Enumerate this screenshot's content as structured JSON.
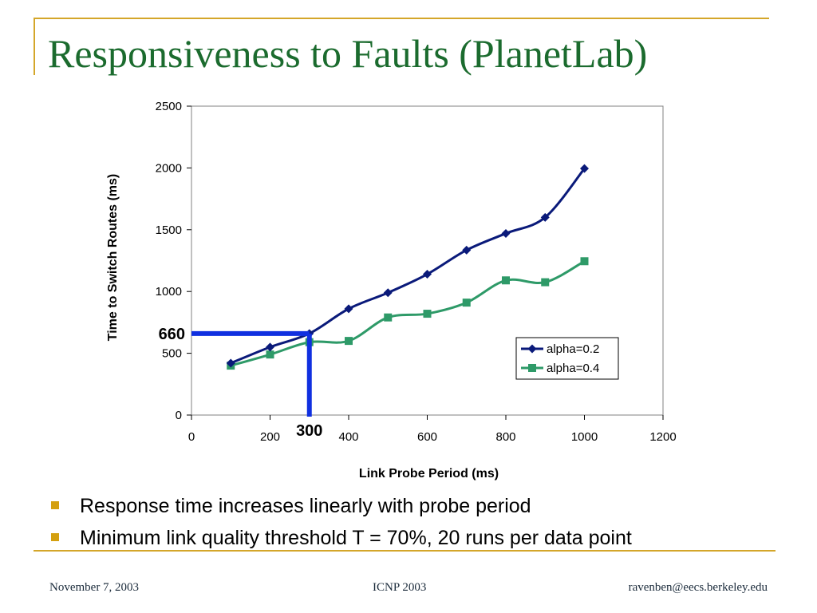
{
  "slide": {
    "title": "Responsiveness to Faults (PlanetLab)",
    "bullets": [
      "Response time increases linearly with probe period",
      "Minimum link quality threshold T = 70%, 20 runs per data point"
    ],
    "footer": {
      "left": "November 7, 2003",
      "center": "ICNP 2003",
      "right": "ravenben@eecs.berkeley.edu"
    },
    "colors": {
      "title": "#1b6b2e",
      "accent": "#d4a62a",
      "bullet": "#d4a010"
    }
  },
  "chart_data": {
    "type": "line",
    "xlabel": "Link Probe Period (ms)",
    "ylabel": "Time to Switch Routes (ms)",
    "xlim": [
      0,
      1200
    ],
    "ylim": [
      0,
      2500
    ],
    "x_ticks": [
      0,
      200,
      400,
      600,
      800,
      1000,
      1200
    ],
    "y_ticks": [
      0,
      500,
      1000,
      1500,
      2000,
      2500
    ],
    "grid": false,
    "legend_position": "lower-right",
    "series": [
      {
        "name": "alpha=0.2",
        "color": "#0a1a7a",
        "marker": "diamond",
        "x": [
          100,
          200,
          300,
          400,
          500,
          600,
          700,
          800,
          900,
          1000
        ],
        "y": [
          420,
          550,
          660,
          860,
          990,
          1140,
          1335,
          1470,
          1600,
          1995
        ]
      },
      {
        "name": "alpha=0.4",
        "color": "#2e9a68",
        "marker": "square",
        "x": [
          100,
          200,
          300,
          400,
          500,
          600,
          700,
          800,
          900,
          1000
        ],
        "y": [
          400,
          490,
          590,
          600,
          790,
          820,
          910,
          1090,
          1075,
          1245
        ]
      }
    ],
    "annotations": [
      {
        "label": "660",
        "axis": "y",
        "value": 660,
        "color": "#1030e0"
      },
      {
        "label": "300",
        "axis": "x",
        "value": 300,
        "color": "#1030e0"
      }
    ]
  }
}
